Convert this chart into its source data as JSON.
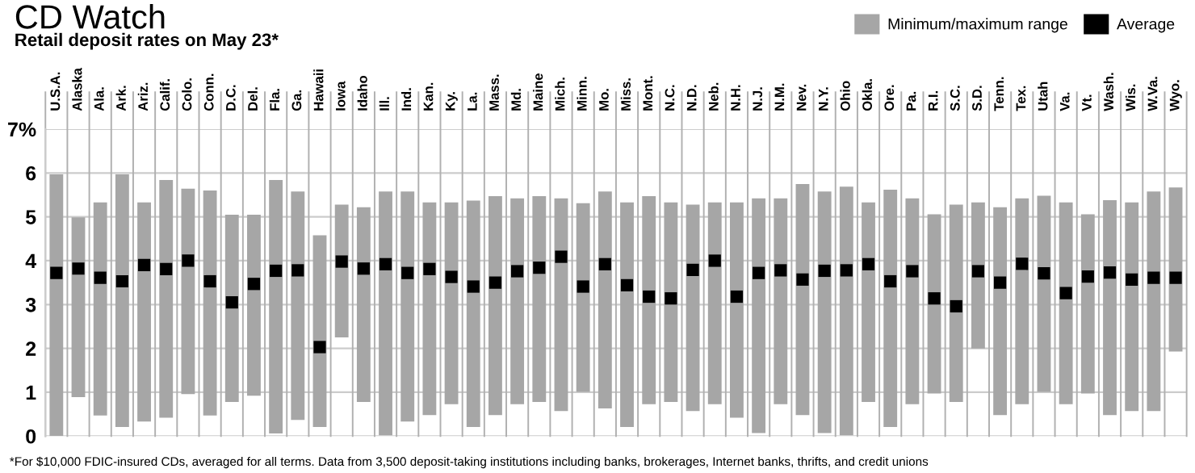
{
  "chart_data": {
    "type": "bar",
    "title": "CD Watch",
    "subtitle": "Retail deposit rates on May 23*",
    "categories": [
      "U.S.A.",
      "Alaska",
      "Ala.",
      "Ark.",
      "Ariz.",
      "Calif.",
      "Colo.",
      "Conn.",
      "D.C.",
      "Del.",
      "Fla.",
      "Ga.",
      "Hawaii",
      "Iowa",
      "Idaho",
      "Ill.",
      "Ind.",
      "Kan.",
      "Ky.",
      "La.",
      "Mass.",
      "Md.",
      "Maine",
      "Mich.",
      "Minn.",
      "Mo.",
      "Miss.",
      "Mont.",
      "N.C.",
      "N.D.",
      "Neb.",
      "N.H.",
      "N.J.",
      "N.M.",
      "Nev.",
      "N.Y.",
      "Ohio",
      "Okla.",
      "Ore.",
      "Pa.",
      "R.I.",
      "S.C.",
      "S.D.",
      "Tenn.",
      "Tex.",
      "Utah",
      "Va.",
      "Vt.",
      "Wash.",
      "Wis.",
      "W.Va.",
      "Wyo."
    ],
    "series": [
      {
        "name": "Minimum/maximum range",
        "color": "#a6a6a6",
        "base": [
          0.0,
          0.89,
          0.47,
          0.21,
          0.33,
          0.42,
          0.96,
          0.47,
          0.78,
          0.92,
          0.06,
          0.37,
          0.21,
          2.25,
          0.78,
          0.02,
          0.33,
          0.48,
          0.73,
          0.21,
          0.48,
          0.73,
          0.78,
          0.57,
          1.01,
          0.63,
          0.21,
          0.73,
          0.78,
          0.57,
          0.73,
          0.42,
          0.07,
          0.73,
          0.48,
          0.07,
          0.02,
          0.78,
          0.21,
          0.73,
          0.97,
          0.78,
          2.0,
          0.48,
          0.73,
          1.01,
          0.73,
          0.97,
          0.48,
          0.57,
          0.57,
          1.93
        ],
        "values": [
          5.97,
          4.1,
          4.86,
          5.76,
          5.0,
          5.42,
          4.68,
          5.13,
          4.27,
          4.13,
          5.78,
          5.21,
          4.37,
          3.03,
          4.44,
          5.56,
          5.25,
          4.85,
          4.6,
          5.16,
          4.99,
          4.69,
          4.69,
          4.85,
          4.3,
          4.95,
          5.12,
          4.74,
          4.55,
          4.71,
          4.6,
          4.91,
          5.35,
          4.69,
          5.27,
          5.51,
          5.67,
          4.55,
          5.41,
          4.69,
          4.09,
          4.5,
          3.33,
          4.74,
          4.69,
          4.47,
          4.6,
          4.09,
          4.9,
          4.76,
          5.01,
          3.74
        ]
      },
      {
        "name": "Average",
        "type": "scatter",
        "color": "#000000",
        "marker": "square",
        "values": [
          3.72,
          3.82,
          3.61,
          3.53,
          3.9,
          3.81,
          4.0,
          3.53,
          3.05,
          3.47,
          3.77,
          3.78,
          2.03,
          3.98,
          3.82,
          3.92,
          3.72,
          3.81,
          3.63,
          3.41,
          3.5,
          3.76,
          3.84,
          4.09,
          3.41,
          3.92,
          3.44,
          3.18,
          3.14,
          3.79,
          4.0,
          3.18,
          3.72,
          3.78,
          3.57,
          3.77,
          3.78,
          3.92,
          3.53,
          3.76,
          3.14,
          2.96,
          3.76,
          3.5,
          3.93,
          3.71,
          3.26,
          3.64,
          3.73,
          3.57,
          3.61,
          3.61
        ]
      }
    ],
    "ylim": [
      0,
      7
    ],
    "yticks": [
      0,
      1,
      2,
      3,
      4,
      5,
      6,
      {
        "value": 7,
        "label": "7%"
      }
    ],
    "grid": true,
    "legend": "top right",
    "annotations": [
      "*For $10,000 FDIC-insured CDs, averaged for all terms. Data from 3,500 deposit-taking institutions including banks, brokerages, Internet banks, thrifts, and credit unions"
    ]
  }
}
